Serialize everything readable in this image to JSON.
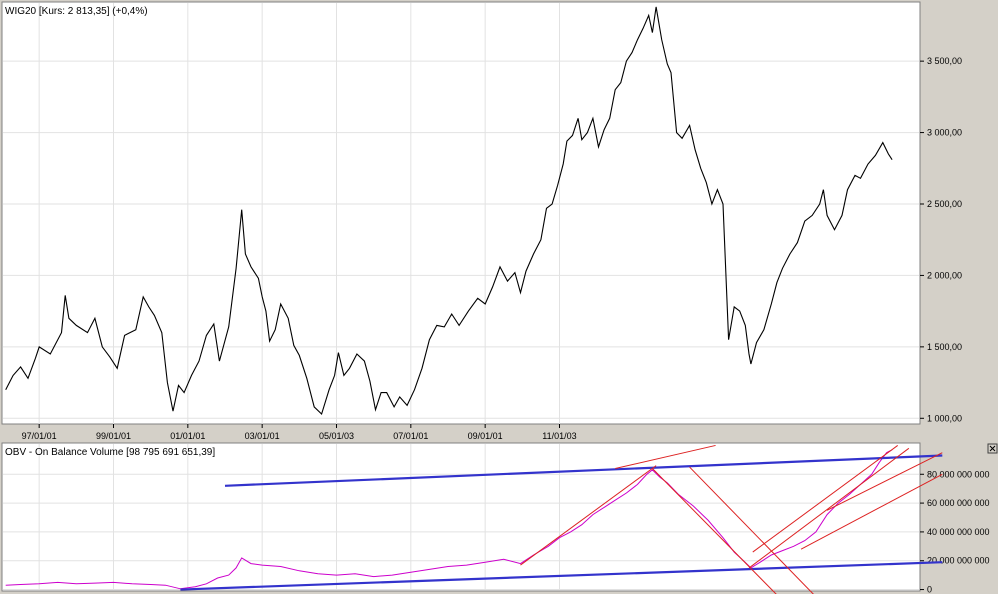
{
  "chart_data": [
    {
      "type": "line",
      "title": "WIG20 [Kurs: 2 813,35] (+0,4%)",
      "x_tick_labels": [
        "97/01/01",
        "99/01/01",
        "01/01/01",
        "03/01/01",
        "05/01/03",
        "07/01/01",
        "09/01/01",
        "11/01/03"
      ],
      "y_ticks": [
        1000,
        1500,
        2000,
        2500,
        3000,
        3500
      ],
      "y_tick_labels": [
        "1 000,00",
        "1 500,00",
        "2 000,00",
        "2 500,00",
        "3 000,00",
        "3 500,00"
      ],
      "ylim": [
        960,
        3900
      ],
      "grid": true,
      "y_axis_side": "right",
      "line_color": "#000000",
      "series": [
        {
          "values": [
            [
              1996.1,
              1200
            ],
            [
              1996.3,
              1300
            ],
            [
              1996.5,
              1360
            ],
            [
              1996.7,
              1280
            ],
            [
              1996.9,
              1420
            ],
            [
              1997.0,
              1500
            ],
            [
              1997.3,
              1450
            ],
            [
              1997.6,
              1600
            ],
            [
              1997.7,
              1860
            ],
            [
              1997.8,
              1700
            ],
            [
              1998.0,
              1650
            ],
            [
              1998.3,
              1600
            ],
            [
              1998.5,
              1700
            ],
            [
              1998.7,
              1500
            ],
            [
              1998.9,
              1430
            ],
            [
              1999.1,
              1350
            ],
            [
              1999.3,
              1580
            ],
            [
              1999.6,
              1620
            ],
            [
              1999.8,
              1850
            ],
            [
              1999.95,
              1780
            ],
            [
              2000.1,
              1720
            ],
            [
              2000.3,
              1600
            ],
            [
              2000.45,
              1250
            ],
            [
              2000.6,
              1050
            ],
            [
              2000.75,
              1230
            ],
            [
              2000.9,
              1180
            ],
            [
              2001.1,
              1300
            ],
            [
              2001.3,
              1400
            ],
            [
              2001.5,
              1580
            ],
            [
              2001.7,
              1660
            ],
            [
              2001.85,
              1400
            ],
            [
              2002.1,
              1640
            ],
            [
              2002.3,
              2050
            ],
            [
              2002.45,
              2460
            ],
            [
              2002.55,
              2150
            ],
            [
              2002.7,
              2060
            ],
            [
              2002.9,
              1980
            ],
            [
              2003.0,
              1850
            ],
            [
              2003.1,
              1750
            ],
            [
              2003.2,
              1540
            ],
            [
              2003.35,
              1620
            ],
            [
              2003.5,
              1800
            ],
            [
              2003.7,
              1700
            ],
            [
              2003.85,
              1510
            ],
            [
              2004.0,
              1440
            ],
            [
              2004.2,
              1280
            ],
            [
              2004.4,
              1080
            ],
            [
              2004.6,
              1030
            ],
            [
              2004.8,
              1200
            ],
            [
              2004.95,
              1300
            ],
            [
              2005.05,
              1460
            ],
            [
              2005.2,
              1300
            ],
            [
              2005.35,
              1350
            ],
            [
              2005.55,
              1450
            ],
            [
              2005.75,
              1400
            ],
            [
              2005.9,
              1260
            ],
            [
              2006.05,
              1060
            ],
            [
              2006.2,
              1180
            ],
            [
              2006.35,
              1180
            ],
            [
              2006.55,
              1080
            ],
            [
              2006.7,
              1150
            ],
            [
              2006.9,
              1090
            ],
            [
              2007.1,
              1200
            ],
            [
              2007.3,
              1350
            ],
            [
              2007.5,
              1550
            ],
            [
              2007.7,
              1650
            ],
            [
              2007.9,
              1640
            ],
            [
              2008.1,
              1730
            ],
            [
              2008.3,
              1650
            ],
            [
              2008.55,
              1750
            ],
            [
              2008.8,
              1840
            ],
            [
              2009.0,
              1800
            ],
            [
              2009.2,
              1920
            ],
            [
              2009.4,
              2060
            ],
            [
              2009.6,
              1960
            ],
            [
              2009.8,
              2020
            ],
            [
              2009.95,
              1880
            ],
            [
              2010.1,
              2030
            ],
            [
              2010.3,
              2150
            ],
            [
              2010.5,
              2250
            ],
            [
              2010.65,
              2470
            ],
            [
              2010.8,
              2500
            ],
            [
              2010.95,
              2630
            ],
            [
              2011.1,
              2780
            ],
            [
              2011.2,
              2940
            ],
            [
              2011.35,
              2980
            ],
            [
              2011.5,
              3100
            ],
            [
              2011.6,
              2950
            ],
            [
              2011.75,
              3000
            ],
            [
              2011.9,
              3100
            ],
            [
              2012.05,
              2900
            ],
            [
              2012.2,
              3020
            ],
            [
              2012.35,
              3100
            ],
            [
              2012.5,
              3300
            ],
            [
              2012.65,
              3350
            ],
            [
              2012.8,
              3500
            ],
            [
              2012.95,
              3560
            ],
            [
              2013.1,
              3650
            ],
            [
              2013.25,
              3730
            ],
            [
              2013.4,
              3820
            ],
            [
              2013.5,
              3700
            ],
            [
              2013.6,
              3880
            ],
            [
              2013.75,
              3650
            ],
            [
              2013.9,
              3480
            ],
            [
              2014.0,
              3420
            ],
            [
              2014.15,
              3000
            ],
            [
              2014.3,
              2960
            ],
            [
              2014.5,
              3050
            ],
            [
              2014.65,
              2880
            ],
            [
              2014.8,
              2750
            ],
            [
              2014.95,
              2650
            ],
            [
              2015.1,
              2500
            ],
            [
              2015.25,
              2600
            ],
            [
              2015.4,
              2500
            ],
            [
              2015.55,
              1550
            ],
            [
              2015.7,
              1780
            ],
            [
              2015.85,
              1750
            ],
            [
              2016.0,
              1650
            ],
            [
              2016.1,
              1450
            ],
            [
              2016.15,
              1380
            ],
            [
              2016.3,
              1530
            ],
            [
              2016.5,
              1620
            ],
            [
              2016.7,
              1800
            ],
            [
              2016.85,
              1950
            ],
            [
              2017.0,
              2050
            ],
            [
              2017.2,
              2150
            ],
            [
              2017.4,
              2230
            ],
            [
              2017.6,
              2380
            ],
            [
              2017.8,
              2420
            ],
            [
              2018.0,
              2500
            ],
            [
              2018.1,
              2600
            ],
            [
              2018.2,
              2420
            ],
            [
              2018.4,
              2320
            ],
            [
              2018.6,
              2420
            ],
            [
              2018.75,
              2600
            ],
            [
              2018.95,
              2700
            ],
            [
              2019.1,
              2680
            ],
            [
              2019.3,
              2780
            ],
            [
              2019.5,
              2840
            ],
            [
              2019.7,
              2930
            ],
            [
              2019.85,
              2850
            ],
            [
              2019.95,
              2810
            ]
          ]
        }
      ]
    },
    {
      "type": "line",
      "title": "OBV - On Balance Volume [98 795 691 651,39]",
      "y_ticks": [
        0,
        20000000000,
        40000000000,
        60000000000,
        80000000000
      ],
      "y_tick_labels": [
        "0",
        "20 000 000 000",
        "40 000 000 000",
        "60 000 000 000",
        "80 000 000 000"
      ],
      "ylim": [
        -1000000000,
        101000000000
      ],
      "grid": true,
      "y_axis_side": "right",
      "line_color": "#cc00cc",
      "trendline_colors": {
        "blue": "#3333cc",
        "red": "#dd2222"
      },
      "series": [
        {
          "values": [
            [
              1996.1,
              3000000000
            ],
            [
              1996.5,
              3500000000
            ],
            [
              1997.0,
              4000000000
            ],
            [
              1997.5,
              5000000000
            ],
            [
              1998.0,
              4000000000
            ],
            [
              1998.5,
              4500000000
            ],
            [
              1999.0,
              5000000000
            ],
            [
              1999.5,
              4000000000
            ],
            [
              2000.0,
              3500000000
            ],
            [
              2000.4,
              3000000000
            ],
            [
              2000.8,
              500000000
            ],
            [
              2001.2,
              2000000000
            ],
            [
              2001.5,
              4000000000
            ],
            [
              2001.8,
              8000000000
            ],
            [
              2002.1,
              10000000000
            ],
            [
              2002.3,
              15000000000
            ],
            [
              2002.45,
              22000000000
            ],
            [
              2002.7,
              18000000000
            ],
            [
              2003.0,
              17000000000
            ],
            [
              2003.5,
              16000000000
            ],
            [
              2004.0,
              13000000000
            ],
            [
              2004.5,
              11000000000
            ],
            [
              2005.0,
              10000000000
            ],
            [
              2005.5,
              11000000000
            ],
            [
              2006.0,
              9000000000
            ],
            [
              2006.5,
              10000000000
            ],
            [
              2007.0,
              12000000000
            ],
            [
              2007.5,
              14000000000
            ],
            [
              2008.0,
              16000000000
            ],
            [
              2008.5,
              17000000000
            ],
            [
              2009.0,
              19000000000
            ],
            [
              2009.5,
              21000000000
            ],
            [
              2009.95,
              18000000000
            ],
            [
              2010.3,
              24000000000
            ],
            [
              2010.7,
              30000000000
            ],
            [
              2011.0,
              36000000000
            ],
            [
              2011.3,
              40000000000
            ],
            [
              2011.6,
              45000000000
            ],
            [
              2011.9,
              52000000000
            ],
            [
              2012.2,
              57000000000
            ],
            [
              2012.5,
              62000000000
            ],
            [
              2012.8,
              67000000000
            ],
            [
              2013.1,
              73000000000
            ],
            [
              2013.35,
              80000000000
            ],
            [
              2013.5,
              83000000000
            ],
            [
              2013.7,
              78000000000
            ],
            [
              2013.9,
              74000000000
            ],
            [
              2014.2,
              66000000000
            ],
            [
              2014.6,
              58000000000
            ],
            [
              2015.0,
              48000000000
            ],
            [
              2015.4,
              36000000000
            ],
            [
              2015.7,
              26000000000
            ],
            [
              2015.95,
              20000000000
            ],
            [
              2016.15,
              15000000000
            ],
            [
              2016.4,
              19000000000
            ],
            [
              2016.7,
              24000000000
            ],
            [
              2017.0,
              27000000000
            ],
            [
              2017.3,
              30000000000
            ],
            [
              2017.6,
              34000000000
            ],
            [
              2017.9,
              40000000000
            ],
            [
              2018.2,
              52000000000
            ],
            [
              2018.5,
              60000000000
            ],
            [
              2018.8,
              66000000000
            ],
            [
              2019.1,
              73000000000
            ],
            [
              2019.4,
              80000000000
            ],
            [
              2019.6,
              88000000000
            ],
            [
              2019.8,
              95000000000
            ],
            [
              2019.95,
              97000000000
            ]
          ]
        }
      ],
      "trendlines": [
        {
          "color": "blue",
          "points": [
            [
              2002.0,
              72000000000
            ],
            [
              2021.3,
              93000000000
            ]
          ]
        },
        {
          "color": "blue",
          "points": [
            [
              2000.8,
              0
            ],
            [
              2021.3,
              19000000000
            ]
          ]
        },
        {
          "color": "red",
          "points": [
            [
              2009.95,
              17000000000
            ],
            [
              2013.6,
              86000000000
            ]
          ]
        },
        {
          "color": "red",
          "points": [
            [
              2012.5,
              84000000000
            ],
            [
              2015.2,
              100000000000
            ]
          ]
        },
        {
          "color": "red",
          "points": [
            [
              2013.5,
              84000000000
            ],
            [
              2016.9,
              -5000000000
            ]
          ]
        },
        {
          "color": "red",
          "points": [
            [
              2014.5,
              85000000000
            ],
            [
              2017.9,
              -5000000000
            ]
          ]
        },
        {
          "color": "red",
          "points": [
            [
              2016.1,
              15000000000
            ],
            [
              2020.4,
              98000000000
            ]
          ]
        },
        {
          "color": "red",
          "points": [
            [
              2016.2,
              26000000000
            ],
            [
              2020.1,
              100000000000
            ]
          ]
        },
        {
          "color": "red",
          "points": [
            [
              2017.5,
              28000000000
            ],
            [
              2021.3,
              80000000000
            ]
          ]
        },
        {
          "color": "red",
          "points": [
            [
              2018.2,
              55000000000
            ],
            [
              2021.3,
              95000000000
            ]
          ]
        }
      ]
    }
  ]
}
